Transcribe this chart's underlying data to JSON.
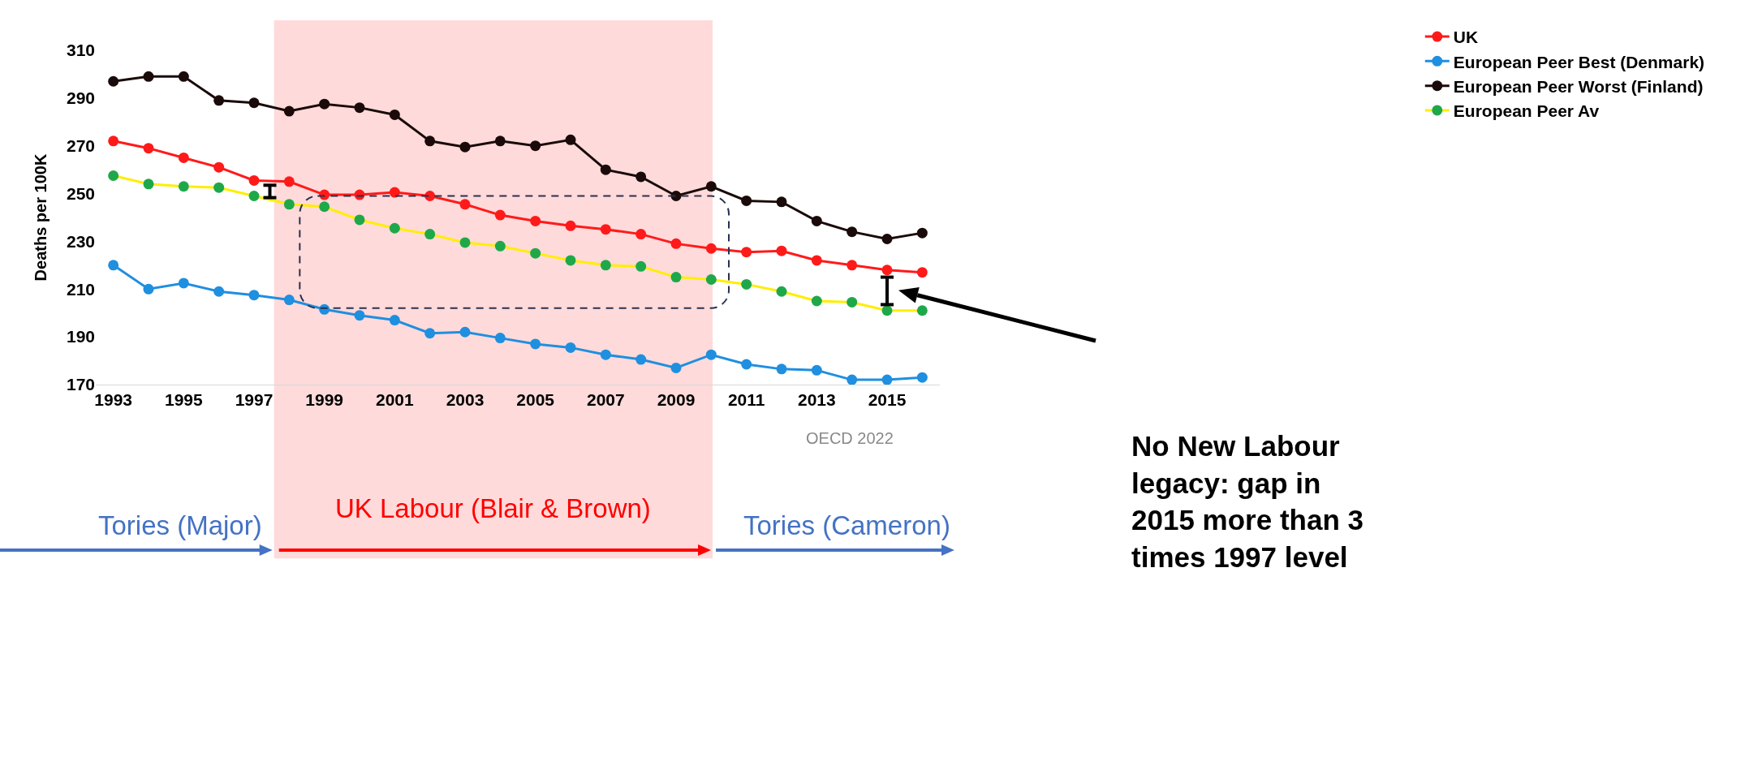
{
  "chart_data": {
    "type": "line",
    "ylabel": "Deaths per 100K",
    "x": [
      1993,
      1994,
      1995,
      1996,
      1997,
      1998,
      1999,
      2000,
      2001,
      2002,
      2003,
      2004,
      2005,
      2006,
      2007,
      2008,
      2009,
      2010,
      2011,
      2012,
      2013,
      2014,
      2015,
      2016
    ],
    "xlim": [
      1992.5,
      2016.5
    ],
    "xticks": [
      1993,
      1995,
      1997,
      1999,
      2001,
      2003,
      2005,
      2007,
      2009,
      2011,
      2013,
      2015
    ],
    "ylim": [
      170,
      310
    ],
    "yticks": [
      170,
      190,
      210,
      230,
      250,
      270,
      290,
      310
    ],
    "grid": false,
    "legend": "top right",
    "marker": "circle",
    "line_style": "solid",
    "series": [
      {
        "name": "UK",
        "color": "#ff1a1a",
        "values": [
          272,
          269,
          265,
          261,
          255.5,
          255,
          249.5,
          249.5,
          250.5,
          249,
          245.5,
          241,
          238.5,
          236.5,
          235,
          233,
          229,
          227,
          225.5,
          226,
          222,
          220,
          218,
          217
        ]
      },
      {
        "name": "European Peer Best (Denmark)",
        "color": "#1f8fe0",
        "values": [
          220,
          210,
          212.5,
          209,
          207.5,
          205.5,
          201.5,
          199,
          197,
          191.5,
          192,
          189.5,
          187,
          185.5,
          182.5,
          180.5,
          177,
          182.5,
          178.5,
          176.5,
          176,
          172,
          172,
          173
        ]
      },
      {
        "name": "European Peer Worst (Finland)",
        "color": "#1a0a0a",
        "values": [
          297,
          299,
          299,
          289,
          288,
          284.5,
          287.5,
          286,
          283,
          272,
          269.5,
          272,
          270,
          272.5,
          260,
          257,
          249,
          253,
          247,
          246.5,
          238.5,
          234,
          231,
          233.5
        ]
      },
      {
        "name": "European Peer Av",
        "color": "#ffee00",
        "colors": [
          "#1fa84a",
          "#1fa84a",
          "#1fa84a",
          "#1fa84a",
          "#1fa84a",
          "#1fa84a",
          "#1fa84a",
          "#1fa84a",
          "#1fa84a",
          "#1fa84a",
          "#1fa84a",
          "#1fa84a",
          "#1fa84a",
          "#1fa84a",
          "#1fa84a",
          "#1fa84a",
          "#1fa84a",
          "#1fa84a",
          "#1fa84a",
          "#1fa84a",
          "#1fa84a",
          "#1fa84a",
          "#1fa84a",
          "#1fa84a"
        ],
        "values": [
          257.5,
          254,
          253,
          252.5,
          249,
          245.5,
          244.5,
          239,
          235.5,
          233,
          229.5,
          228,
          225,
          222,
          220,
          219.5,
          215,
          214,
          212,
          209,
          205,
          204.5,
          201,
          201
        ]
      }
    ],
    "bands": [
      {
        "axis": "x",
        "from": 1997.57,
        "to": 2010.04,
        "label": "UK Labour (Blair & Brown)",
        "color": "#ffdada"
      }
    ],
    "annotations": [
      "Tories (Major)",
      "Tories (Cameron)",
      "OECD 2022",
      "No New Labour legacy: gap in 2015 more than 3 times 1997 level"
    ]
  }
}
